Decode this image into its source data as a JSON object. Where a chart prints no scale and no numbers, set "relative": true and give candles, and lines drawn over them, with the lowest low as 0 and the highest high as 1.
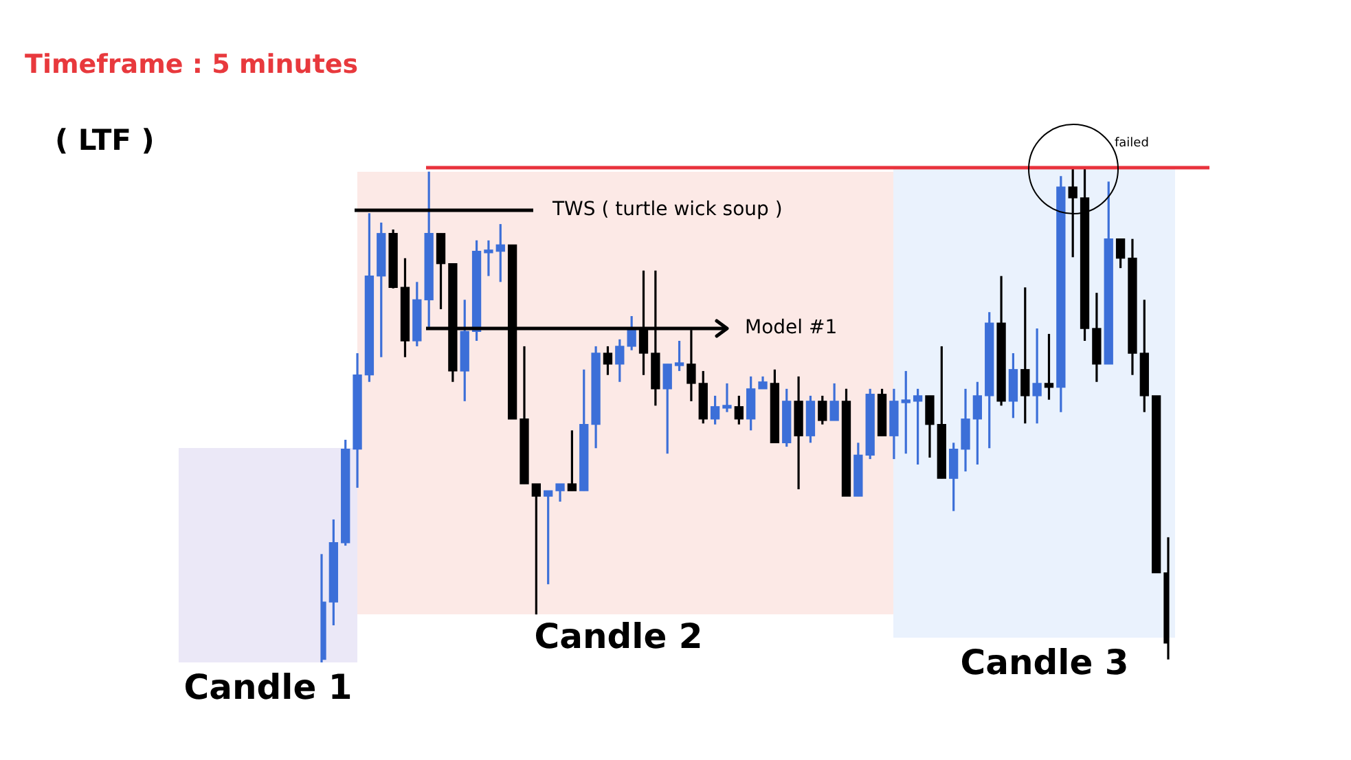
{
  "chart_data": {
    "type": "candlestick",
    "relative": true,
    "title": "Timeframe : 5 minutes",
    "subtitle": "( LTF )",
    "categories": [
      null,
      null,
      null,
      null,
      null,
      null,
      null,
      null,
      null,
      null,
      null,
      null,
      null,
      null,
      null,
      null,
      null,
      null,
      null,
      null,
      null,
      null,
      null,
      null,
      null,
      null,
      null,
      null,
      null,
      null,
      null,
      null,
      null,
      null,
      null,
      null,
      null,
      null,
      null,
      null,
      null,
      null,
      null,
      null,
      null,
      null,
      null,
      null,
      null,
      null,
      null,
      null,
      null,
      null,
      null,
      null,
      null,
      null,
      null,
      null,
      null,
      null,
      null,
      null,
      null,
      null,
      null,
      null,
      null,
      null,
      null,
      null
    ],
    "ohlc": [
      [
        0.006,
        0.219,
        0,
        0.122
      ],
      [
        0.122,
        0.289,
        0.075,
        0.242
      ],
      [
        0.242,
        0.45,
        0.236,
        0.431
      ],
      [
        0.431,
        0.625,
        0.353,
        0.581
      ],
      [
        0.581,
        0.908,
        0.567,
        0.781
      ],
      [
        0.781,
        0.889,
        0.617,
        0.867
      ],
      [
        0.867,
        0.875,
        0.756,
        0.758
      ],
      [
        0.758,
        0.817,
        0.617,
        0.65
      ],
      [
        0.65,
        0.769,
        0.639,
        0.733
      ],
      [
        0.733,
        0.992,
        0.678,
        0.867
      ],
      [
        0.867,
        0.867,
        0.714,
        0.806
      ],
      [
        0.806,
        0.806,
        0.567,
        0.589
      ],
      [
        0.589,
        0.733,
        0.528,
        0.669
      ],
      [
        0.669,
        0.853,
        0.65,
        0.831
      ],
      [
        0.828,
        0.853,
        0.781,
        0.831
      ],
      [
        0.831,
        0.886,
        0.769,
        0.844
      ],
      [
        0.844,
        0.844,
        0.492,
        0.492
      ],
      [
        0.492,
        0.639,
        0.361,
        0.361
      ],
      [
        0.361,
        0.361,
        0.097,
        0.336
      ],
      [
        0.336,
        0.347,
        0.158,
        0.347
      ],
      [
        0.347,
        0.361,
        0.325,
        0.361
      ],
      [
        0.361,
        0.469,
        0.347,
        0.347
      ],
      [
        0.347,
        0.592,
        0.347,
        0.481
      ],
      [
        0.481,
        0.639,
        0.433,
        0.625
      ],
      [
        0.625,
        0.639,
        0.581,
        0.603
      ],
      [
        0.603,
        0.653,
        0.567,
        0.639
      ],
      [
        0.639,
        0.7,
        0.631,
        0.672
      ],
      [
        0.672,
        0.792,
        0.581,
        0.625
      ],
      [
        0.625,
        0.792,
        0.519,
        0.553
      ],
      [
        0.553,
        0.603,
        0.422,
        0.603
      ],
      [
        0.6,
        0.65,
        0.589,
        0.603
      ],
      [
        0.603,
        0.672,
        0.528,
        0.564
      ],
      [
        0.564,
        0.589,
        0.483,
        0.492
      ],
      [
        0.492,
        0.539,
        0.481,
        0.517
      ],
      [
        0.514,
        0.564,
        0.506,
        0.517
      ],
      [
        0.517,
        0.539,
        0.481,
        0.492
      ],
      [
        0.492,
        0.578,
        0.469,
        0.553
      ],
      [
        0.553,
        0.578,
        0.553,
        0.567
      ],
      [
        0.564,
        0.592,
        0.444,
        0.444
      ],
      [
        0.444,
        0.553,
        0.436,
        0.528
      ],
      [
        0.528,
        0.578,
        0.35,
        0.458
      ],
      [
        0.458,
        0.539,
        0.444,
        0.528
      ],
      [
        0.528,
        0.539,
        0.481,
        0.489
      ],
      [
        0.489,
        0.564,
        0.489,
        0.528
      ],
      [
        0.528,
        0.553,
        0.336,
        0.336
      ],
      [
        0.336,
        0.444,
        0.336,
        0.419
      ],
      [
        0.419,
        0.553,
        0.411,
        0.542
      ],
      [
        0.542,
        0.553,
        0.458,
        0.458
      ],
      [
        0.458,
        0.553,
        0.411,
        0.528
      ],
      [
        0.525,
        0.589,
        0.422,
        0.528
      ],
      [
        0.528,
        0.553,
        0.4,
        0.539
      ],
      [
        0.539,
        0.539,
        0.414,
        0.481
      ],
      [
        0.481,
        0.639,
        0.372,
        0.372
      ],
      [
        0.372,
        0.444,
        0.306,
        0.431
      ],
      [
        0.431,
        0.553,
        0.386,
        0.492
      ],
      [
        0.492,
        0.567,
        0.4,
        0.539
      ],
      [
        0.539,
        0.708,
        0.433,
        0.686
      ],
      [
        0.686,
        0.781,
        0.519,
        0.528
      ],
      [
        0.528,
        0.625,
        0.494,
        0.592
      ],
      [
        0.592,
        0.758,
        0.483,
        0.539
      ],
      [
        0.539,
        0.675,
        0.483,
        0.564
      ],
      [
        0.564,
        0.664,
        0.531,
        0.556
      ],
      [
        0.556,
        0.983,
        0.506,
        0.961
      ],
      [
        0.961,
        1,
        0.819,
        0.939
      ],
      [
        0.939,
        1,
        0.65,
        0.675
      ],
      [
        0.675,
        0.747,
        0.567,
        0.603
      ],
      [
        0.603,
        0.972,
        0.603,
        0.856
      ],
      [
        0.856,
        0.856,
        0.797,
        0.817
      ],
      [
        0.817,
        0.856,
        0.581,
        0.625
      ],
      [
        0.625,
        0.733,
        0.506,
        0.539
      ],
      [
        0.539,
        0.539,
        0.181,
        0.181
      ],
      [
        0.181,
        0.253,
        0.006,
        0.039
      ]
    ],
    "colors": [
      "#3c6fd8",
      "#3c6fd8",
      "#3c6fd8",
      "#3c6fd8",
      "#3c6fd8",
      "#3c6fd8",
      "#000000",
      "#000000",
      "#3c6fd8",
      "#3c6fd8",
      "#000000",
      "#000000",
      "#3c6fd8",
      "#3c6fd8",
      "#3c6fd8",
      "#3c6fd8",
      "#000000",
      "#000000",
      "#000000",
      "#3c6fd8",
      "#3c6fd8",
      "#000000",
      "#3c6fd8",
      "#3c6fd8",
      "#000000",
      "#3c6fd8",
      "#3c6fd8",
      "#000000",
      "#000000",
      "#3c6fd8",
      "#3c6fd8",
      "#000000",
      "#000000",
      "#3c6fd8",
      "#3c6fd8",
      "#000000",
      "#3c6fd8",
      "#3c6fd8",
      "#000000",
      "#3c6fd8",
      "#000000",
      "#3c6fd8",
      "#000000",
      "#3c6fd8",
      "#000000",
      "#3c6fd8",
      "#3c6fd8",
      "#000000",
      "#3c6fd8",
      "#3c6fd8",
      "#3c6fd8",
      "#000000",
      "#000000",
      "#3c6fd8",
      "#3c6fd8",
      "#3c6fd8",
      "#3c6fd8",
      "#000000",
      "#3c6fd8",
      "#000000",
      "#3c6fd8",
      "#000000",
      "#3c6fd8",
      "#000000",
      "#000000",
      "#000000",
      "#3c6fd8",
      "#000000",
      "#000000",
      "#000000",
      "#000000",
      "#000000"
    ],
    "ref_lines": [
      {
        "axis": "y",
        "value": 1,
        "color": "#e8323c"
      },
      {
        "axis": "y",
        "value": 0.914,
        "label": "TWS ( turtle wick soup )",
        "color": "#000000"
      },
      {
        "axis": "y",
        "value": 0.675,
        "label": "Model #1",
        "color": "#000000"
      }
    ],
    "annotations": [
      "failed",
      "Candle 1",
      "Candle 2",
      "Candle 3"
    ]
  }
}
